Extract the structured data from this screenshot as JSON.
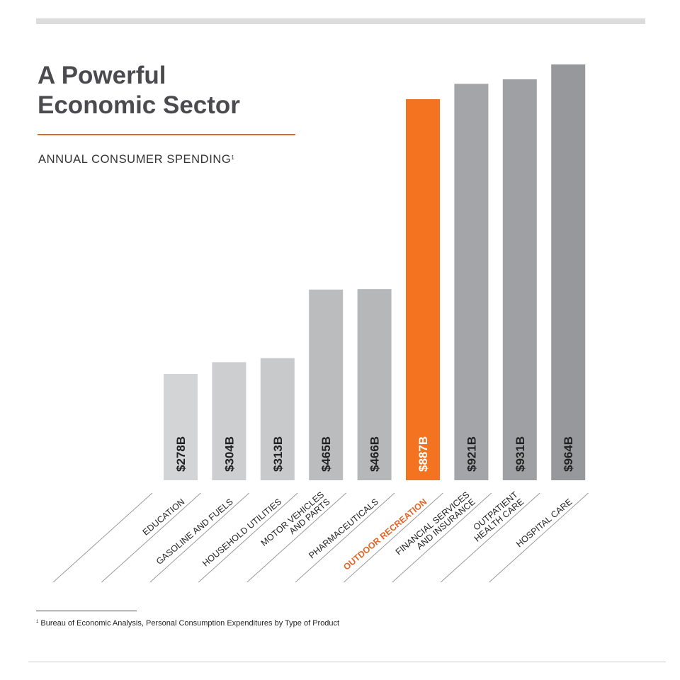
{
  "header": {
    "title_line1": "A Powerful",
    "title_line2": "Economic Sector",
    "subtitle": "ANNUAL CONSUMER SPENDING",
    "subtitle_note_marker": "1"
  },
  "footnote": {
    "marker": "1",
    "text": "Bureau of Economic Analysis, Personal Consumption Expenditures by Type of Product"
  },
  "colors": {
    "highlight": "#f47321",
    "highlight_label": "#e0662b",
    "label_text": "#222222",
    "bar_shades": [
      "#d3d4d6",
      "#cdced0",
      "#c8c9cb",
      "#bbbcbe",
      "#b6b7b9",
      "#f47321",
      "#a4a5a8",
      "#9fa0a3",
      "#97989b"
    ]
  },
  "chart_data": {
    "type": "bar",
    "title": "A Powerful Economic Sector",
    "subtitle": "ANNUAL CONSUMER SPENDING",
    "xlabel": "",
    "ylabel": "",
    "unit": "Billion USD",
    "categories": [
      [
        "EDUCATION"
      ],
      [
        "GASOLINE AND FUELS"
      ],
      [
        "HOUSEHOLD UTILITIES"
      ],
      [
        "MOTOR VEHICLES",
        "AND PARTS"
      ],
      [
        "PHARMACEUTICALS"
      ],
      [
        "OUTDOOR RECREATION"
      ],
      [
        "FINANCIAL SERVICES",
        "AND INSURANCE"
      ],
      [
        "OUTPATIENT",
        "HEALTH CARE"
      ],
      [
        "HOSPITAL CARE"
      ]
    ],
    "values": [
      278,
      304,
      313,
      465,
      466,
      887,
      921,
      931,
      964
    ],
    "value_labels": [
      "$278B",
      "$304B",
      "$313B",
      "$465B",
      "$466B",
      "$887B",
      "$921B",
      "$931B",
      "$964B"
    ],
    "highlight_index": 5,
    "grid": false,
    "legend": "none"
  }
}
